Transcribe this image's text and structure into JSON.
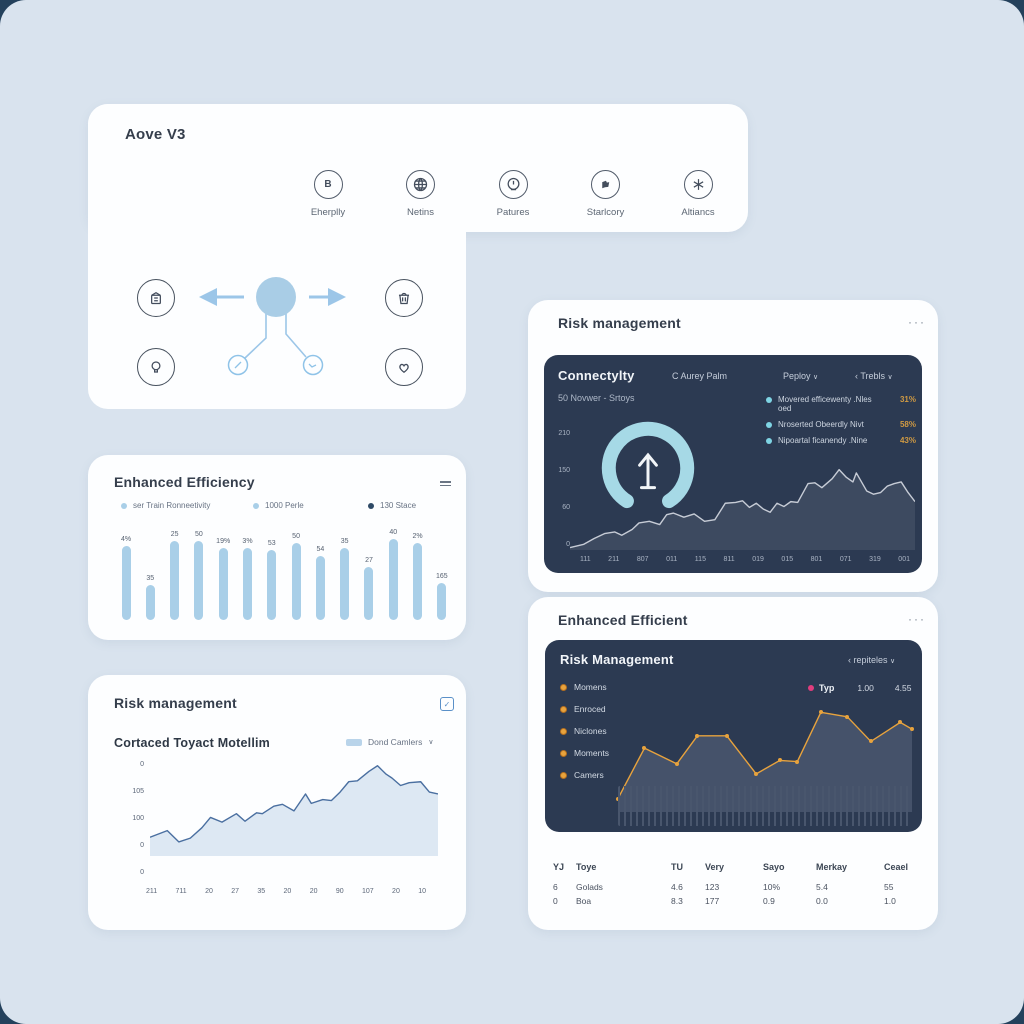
{
  "cards": {
    "aove": {
      "title": "Aove V3",
      "nav": [
        {
          "label": "Eherplly",
          "icon": "b-badge-icon"
        },
        {
          "label": "Netins",
          "icon": "globe-icon"
        },
        {
          "label": "Patures",
          "icon": "clock-icon"
        },
        {
          "label": "Starlcory",
          "icon": "flag-icon"
        },
        {
          "label": "Altiancs",
          "icon": "asterisk-icon"
        }
      ]
    },
    "efficiency": {
      "title": "Enhanced Efficiency",
      "legend": [
        {
          "label": "ser Train Ronneetivity",
          "color": "#a9cfe8"
        },
        {
          "label": "1000 Perle",
          "color": "#a9cfe8"
        },
        {
          "label": "130 Stace",
          "color": "#2e4a66"
        }
      ]
    },
    "risk_left": {
      "title": "Risk management",
      "subtitle": "Cortaced Toyact Motellim",
      "filter_label": "Dond Camlers"
    },
    "risk_right": {
      "title": "Risk management",
      "panel_title": "Connectylty",
      "control_a": "C Aurey Palm",
      "control_b": "Peploy",
      "control_c": "Trebls",
      "subtitle": "50 Novwer - Srtoys",
      "legend": [
        {
          "label": "Movered efficewenty .Nles oed",
          "value": "31%"
        },
        {
          "label": "Nroserted Obeerdly Nivt",
          "value": "58%"
        },
        {
          "label": "Nipoartal ficanendy .Nine",
          "value": "43%"
        }
      ]
    },
    "efficient": {
      "title": "Enhanced Efficient",
      "panel_title": "Risk Management",
      "control": "repiteles",
      "items": [
        "Momens",
        "Enroced",
        "Niclones",
        "Moments",
        "Camers"
      ],
      "series_label": "Typ",
      "series_v1": "1.00",
      "series_v2": "4.55",
      "table": {
        "columns": [
          "YJ",
          "Toye",
          "TU",
          "Very",
          "Sayo",
          "Merkay",
          "Ceael"
        ],
        "rows": [
          [
            "6",
            "Golads",
            "4.6",
            "123",
            "10%",
            "5.4",
            "55"
          ],
          [
            "0",
            "Boa",
            "8.3",
            "177",
            "0.9",
            "0.0",
            "1.0"
          ]
        ]
      }
    }
  },
  "chart_data": [
    {
      "id": "efficiency-bars",
      "type": "bar",
      "title": "Enhanced Efficiency",
      "values": [
        "4%",
        "35",
        "25",
        "50",
        "19%",
        "3%",
        "53",
        "50",
        "54",
        "35",
        "27",
        "40",
        "2%",
        "165"
      ],
      "heights_pct": [
        80,
        38,
        86,
        86,
        78,
        78,
        76,
        84,
        70,
        78,
        58,
        88,
        84,
        40
      ],
      "bar_color": "#a9cfe8"
    },
    {
      "id": "risk-left-area",
      "type": "area",
      "title": "Cortaced Toyact Motellim",
      "y_ticks": [
        "0",
        "105",
        "100",
        "0",
        "0"
      ],
      "x_ticks": [
        "211",
        "711",
        "20",
        "27",
        "35",
        "20",
        "20",
        "90",
        "107",
        "20",
        "10"
      ],
      "line_color": "#4a6fa0",
      "fill_color": "#dde8f3",
      "points": [
        [
          0,
          80
        ],
        [
          6,
          73
        ],
        [
          10,
          85
        ],
        [
          14,
          81
        ],
        [
          18,
          70
        ],
        [
          21,
          59
        ],
        [
          25,
          64
        ],
        [
          30,
          55
        ],
        [
          33,
          63
        ],
        [
          37,
          54
        ],
        [
          39,
          55
        ],
        [
          43,
          47
        ],
        [
          46,
          45
        ],
        [
          50,
          52
        ],
        [
          54,
          34
        ],
        [
          56,
          44
        ],
        [
          60,
          40
        ],
        [
          63,
          41
        ],
        [
          66,
          32
        ],
        [
          69,
          21
        ],
        [
          72,
          20
        ],
        [
          76,
          10
        ],
        [
          79,
          4
        ],
        [
          82,
          13
        ],
        [
          84,
          17
        ],
        [
          87,
          25
        ],
        [
          90,
          22
        ],
        [
          94,
          21
        ],
        [
          97,
          32
        ],
        [
          100,
          34
        ]
      ]
    },
    {
      "id": "connectivity-area",
      "type": "area",
      "title": "Connectylty",
      "y_ticks": [
        "210",
        "150",
        "60",
        "0"
      ],
      "x_ticks": [
        "111",
        "211",
        "807",
        "011",
        "115",
        "811",
        "019",
        "015",
        "801",
        "071",
        "319",
        "001"
      ],
      "line_color": "#c7ccd6",
      "fill_color": "#3d4a60",
      "gauge_color": "#a6d9e6",
      "points": [
        [
          0,
          97
        ],
        [
          4,
          93
        ],
        [
          7,
          86
        ],
        [
          10,
          80
        ],
        [
          13,
          78
        ],
        [
          15,
          82
        ],
        [
          18,
          75
        ],
        [
          20,
          67
        ],
        [
          23,
          65
        ],
        [
          26,
          69
        ],
        [
          28,
          57
        ],
        [
          30,
          55
        ],
        [
          33,
          60
        ],
        [
          36,
          56
        ],
        [
          39,
          65
        ],
        [
          42,
          63
        ],
        [
          45,
          43
        ],
        [
          48,
          42
        ],
        [
          50,
          40
        ],
        [
          52,
          48
        ],
        [
          54,
          43
        ],
        [
          56,
          50
        ],
        [
          58,
          54
        ],
        [
          60,
          43
        ],
        [
          62,
          47
        ],
        [
          64,
          41
        ],
        [
          66,
          42
        ],
        [
          69,
          19
        ],
        [
          71,
          18
        ],
        [
          73,
          24
        ],
        [
          76,
          13
        ],
        [
          78,
          2
        ],
        [
          80,
          11
        ],
        [
          82,
          17
        ],
        [
          83,
          6
        ],
        [
          86,
          28
        ],
        [
          88,
          32
        ],
        [
          90,
          30
        ],
        [
          92,
          22
        ],
        [
          94,
          19
        ],
        [
          96,
          17
        ],
        [
          98,
          30
        ],
        [
          100,
          41
        ]
      ]
    },
    {
      "id": "risk-right-line",
      "type": "line",
      "title": "Risk Management",
      "line_color": "#e8a33d",
      "fill_color": "#45526a",
      "accent_color": "#e13d7d",
      "points": [
        [
          0,
          88
        ],
        [
          9,
          43
        ],
        [
          20,
          57
        ],
        [
          27,
          32
        ],
        [
          37,
          32
        ],
        [
          47,
          66
        ],
        [
          55,
          54
        ],
        [
          61,
          55
        ],
        [
          69,
          11
        ],
        [
          78,
          15
        ],
        [
          86,
          37
        ],
        [
          96,
          20
        ],
        [
          100,
          26
        ]
      ]
    }
  ]
}
